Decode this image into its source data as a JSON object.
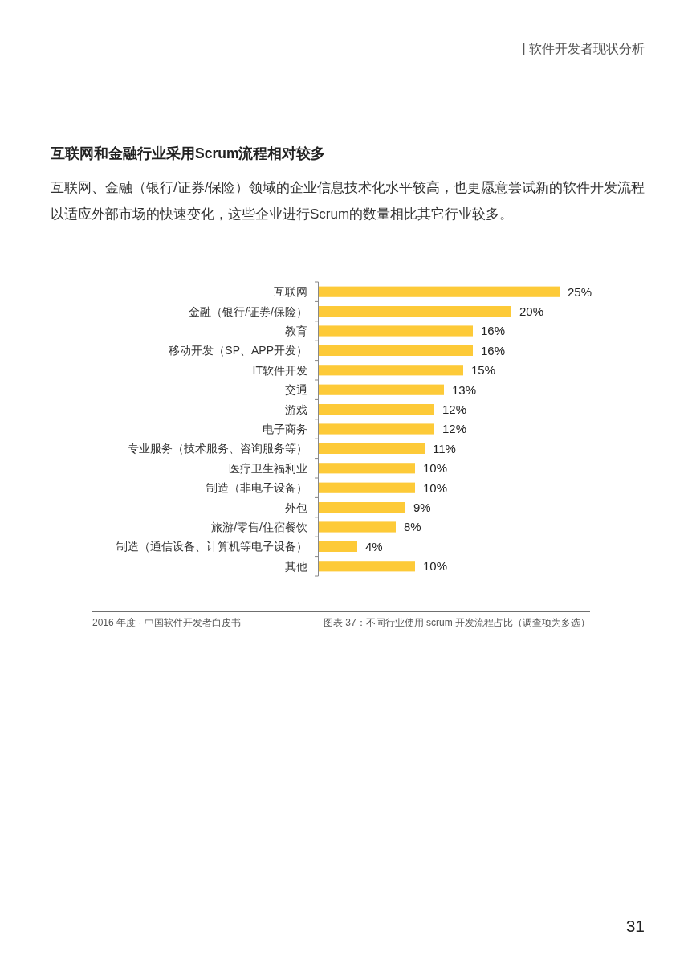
{
  "chart_data": {
    "type": "bar",
    "orientation": "horizontal",
    "title": "互联网和金融行业采用Scrum流程相对较多",
    "subtitle": "互联网、金融（银行/证券/保险）领域的企业信息技术化水平较高，也更愿意尝试新的软件开发流程以适应外部市场的快速变化，这些企业进行Scrum的数量相比其它行业较多。",
    "categories": [
      "互联网",
      "金融（银行/证券/保险）",
      "教育",
      "移动开发（SP、APP开发）",
      "IT软件开发",
      "交通",
      "游戏",
      "电子商务",
      "专业服务（技术服务、咨询服务等）",
      "医疗卫生福利业",
      "制造（非电子设备）",
      "外包",
      "旅游/零售/住宿餐饮",
      "制造（通信设备、计算机等电子设备）",
      "其他"
    ],
    "values": [
      25,
      20,
      16,
      16,
      15,
      13,
      12,
      12,
      11,
      10,
      10,
      9,
      8,
      4,
      10
    ],
    "value_labels": [
      "25%",
      "20%",
      "16%",
      "16%",
      "15%",
      "13%",
      "12%",
      "12%",
      "11%",
      "10%",
      "10%",
      "9%",
      "8%",
      "4%",
      "10%"
    ],
    "color": "#fdca38",
    "annotations": [
      "| 软件开发者现状分析",
      "2016 年度 · 中国软件开发者白皮书",
      "图表 37：不同行业使用 scrum 开发流程占比（调查项为多选）",
      "31"
    ]
  }
}
